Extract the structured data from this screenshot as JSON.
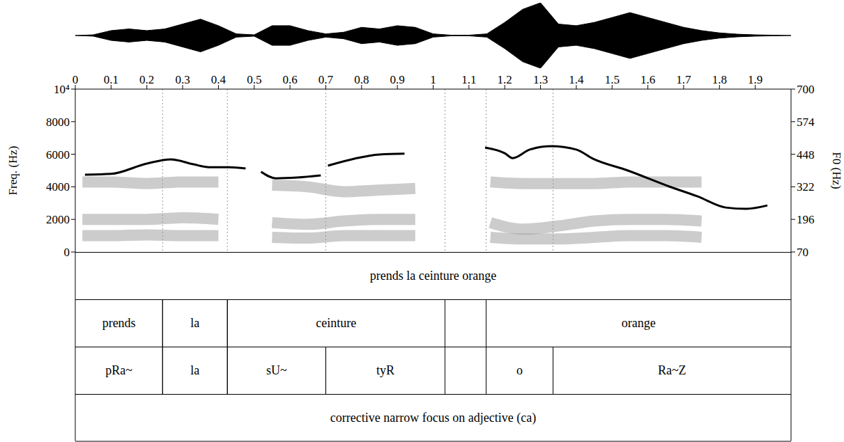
{
  "chart_data": {
    "type": "line",
    "y_label": "Freq. (Hz)",
    "y2_label": "F0 (Hz)",
    "xlim": [
      0,
      2
    ],
    "xticks": [
      0,
      0.1,
      0.2,
      0.3,
      0.4,
      0.5,
      0.6,
      0.7,
      0.8,
      0.9,
      1,
      1.1,
      1.2,
      1.3,
      1.4,
      1.5,
      1.6,
      1.7,
      1.8,
      1.9
    ],
    "ylim": [
      0,
      10000
    ],
    "yticks": [
      0,
      2000,
      4000,
      6000,
      8000,
      {
        "value": 10000,
        "label": "10⁴"
      }
    ],
    "y2lim": [
      70,
      700
    ],
    "y2ticks": [
      70,
      196,
      322,
      448,
      574,
      700
    ],
    "x": [
      0.027,
      0.1,
      0.2,
      0.267,
      0.33,
      0.374,
      0.43,
      0.476,
      0.5,
      0.519,
      0.56,
      0.62,
      0.686,
      0.695,
      0.706,
      0.78,
      0.85,
      0.92,
      1.0,
      1.145,
      1.2,
      1.222,
      1.27,
      1.33,
      1.4,
      1.446,
      1.544,
      1.66,
      1.739,
      1.817,
      1.875,
      1.934
    ],
    "series": [
      {
        "axis": "y2",
        "color": "#000000",
        "values": [
          369,
          372,
          412,
          428,
          409,
          398,
          398,
          393,
          null,
          380,
          355,
          358,
          366,
          null,
          404,
          431,
          447,
          450,
          null,
          474,
          452,
          433,
          466,
          479,
          466,
          431,
          385,
          323,
          285,
          242,
          237,
          250
        ]
      }
    ],
    "spectrogram": {
      "color": "#9a9a9a",
      "x": [
        0.02,
        0.1,
        0.2,
        0.3,
        0.4,
        0.46,
        0.55,
        0.65,
        0.75,
        0.85,
        0.95,
        1.03,
        1.16,
        1.25,
        1.35,
        1.45,
        1.55,
        1.65,
        1.75,
        1.85,
        1.95
      ],
      "bands": [
        [
          1000,
          1000,
          1050,
          1000,
          1000,
          null,
          900,
          850,
          1000,
          1000,
          1000,
          null,
          900,
          800,
          800,
          900,
          1000,
          1000,
          900,
          null,
          null
        ],
        [
          2000,
          2000,
          2000,
          2100,
          2000,
          null,
          1800,
          1700,
          1900,
          2000,
          2000,
          null,
          1800,
          1400,
          1600,
          1900,
          2000,
          2000,
          1900,
          null,
          null
        ],
        [
          4300,
          4300,
          4200,
          4300,
          4300,
          null,
          4100,
          4000,
          3700,
          3800,
          3900,
          null,
          4300,
          4200,
          4200,
          4200,
          4300,
          4300,
          4300,
          null,
          null
        ]
      ]
    },
    "waveform": {
      "color": "#000000",
      "ylim": [
        -1,
        1
      ],
      "x": [
        0,
        0.05,
        0.1,
        0.15,
        0.2,
        0.25,
        0.3,
        0.35,
        0.4,
        0.45,
        0.5,
        0.55,
        0.6,
        0.65,
        0.7,
        0.75,
        0.8,
        0.85,
        0.9,
        0.95,
        1,
        1.05,
        1.1,
        1.15,
        1.2,
        1.25,
        1.3,
        1.35,
        1.4,
        1.45,
        1.5,
        1.55,
        1.6,
        1.65,
        1.7,
        1.75,
        1.8,
        1.85,
        1.9,
        1.95,
        2
      ],
      "amplitude": [
        0,
        0.02,
        0.15,
        0.2,
        0.15,
        0.2,
        0.35,
        0.5,
        0.3,
        0.05,
        0.02,
        0.3,
        0.3,
        0.15,
        0.05,
        0.1,
        0.25,
        0.2,
        0.3,
        0.25,
        0.05,
        0.01,
        0.01,
        0.05,
        0.4,
        0.8,
        1.0,
        0.35,
        0.3,
        0.4,
        0.55,
        0.7,
        0.55,
        0.4,
        0.25,
        0.15,
        0.08,
        0.04,
        0.02,
        0.01,
        0
      ]
    },
    "tiers": [
      {
        "intervals": [
          {
            "xmin": 0,
            "xmax": 2,
            "text": "prends la ceinture orange"
          }
        ]
      },
      {
        "intervals": [
          {
            "xmin": 0,
            "xmax": 0.244,
            "text": "prends"
          },
          {
            "xmin": 0.244,
            "xmax": 0.425,
            "text": "la"
          },
          {
            "xmin": 0.425,
            "xmax": 1.033,
            "text": "ceinture"
          },
          {
            "xmin": 1.148,
            "xmax": 2,
            "text": "orange"
          }
        ]
      },
      {
        "intervals": [
          {
            "xmin": 0,
            "xmax": 0.244,
            "text": "pRa~"
          },
          {
            "xmin": 0.244,
            "xmax": 0.425,
            "text": "la"
          },
          {
            "xmin": 0.425,
            "xmax": 0.7,
            "text": "sU~"
          },
          {
            "xmin": 0.7,
            "xmax": 1.033,
            "text": "tyR"
          },
          {
            "xmin": 1.148,
            "xmax": 1.335,
            "text": "o"
          },
          {
            "xmin": 1.335,
            "xmax": 2,
            "text": "Ra~Z"
          }
        ]
      },
      {
        "intervals": [
          {
            "xmin": 0,
            "xmax": 2,
            "text": "corrective narrow focus on adjective (ca)"
          }
        ]
      }
    ]
  }
}
